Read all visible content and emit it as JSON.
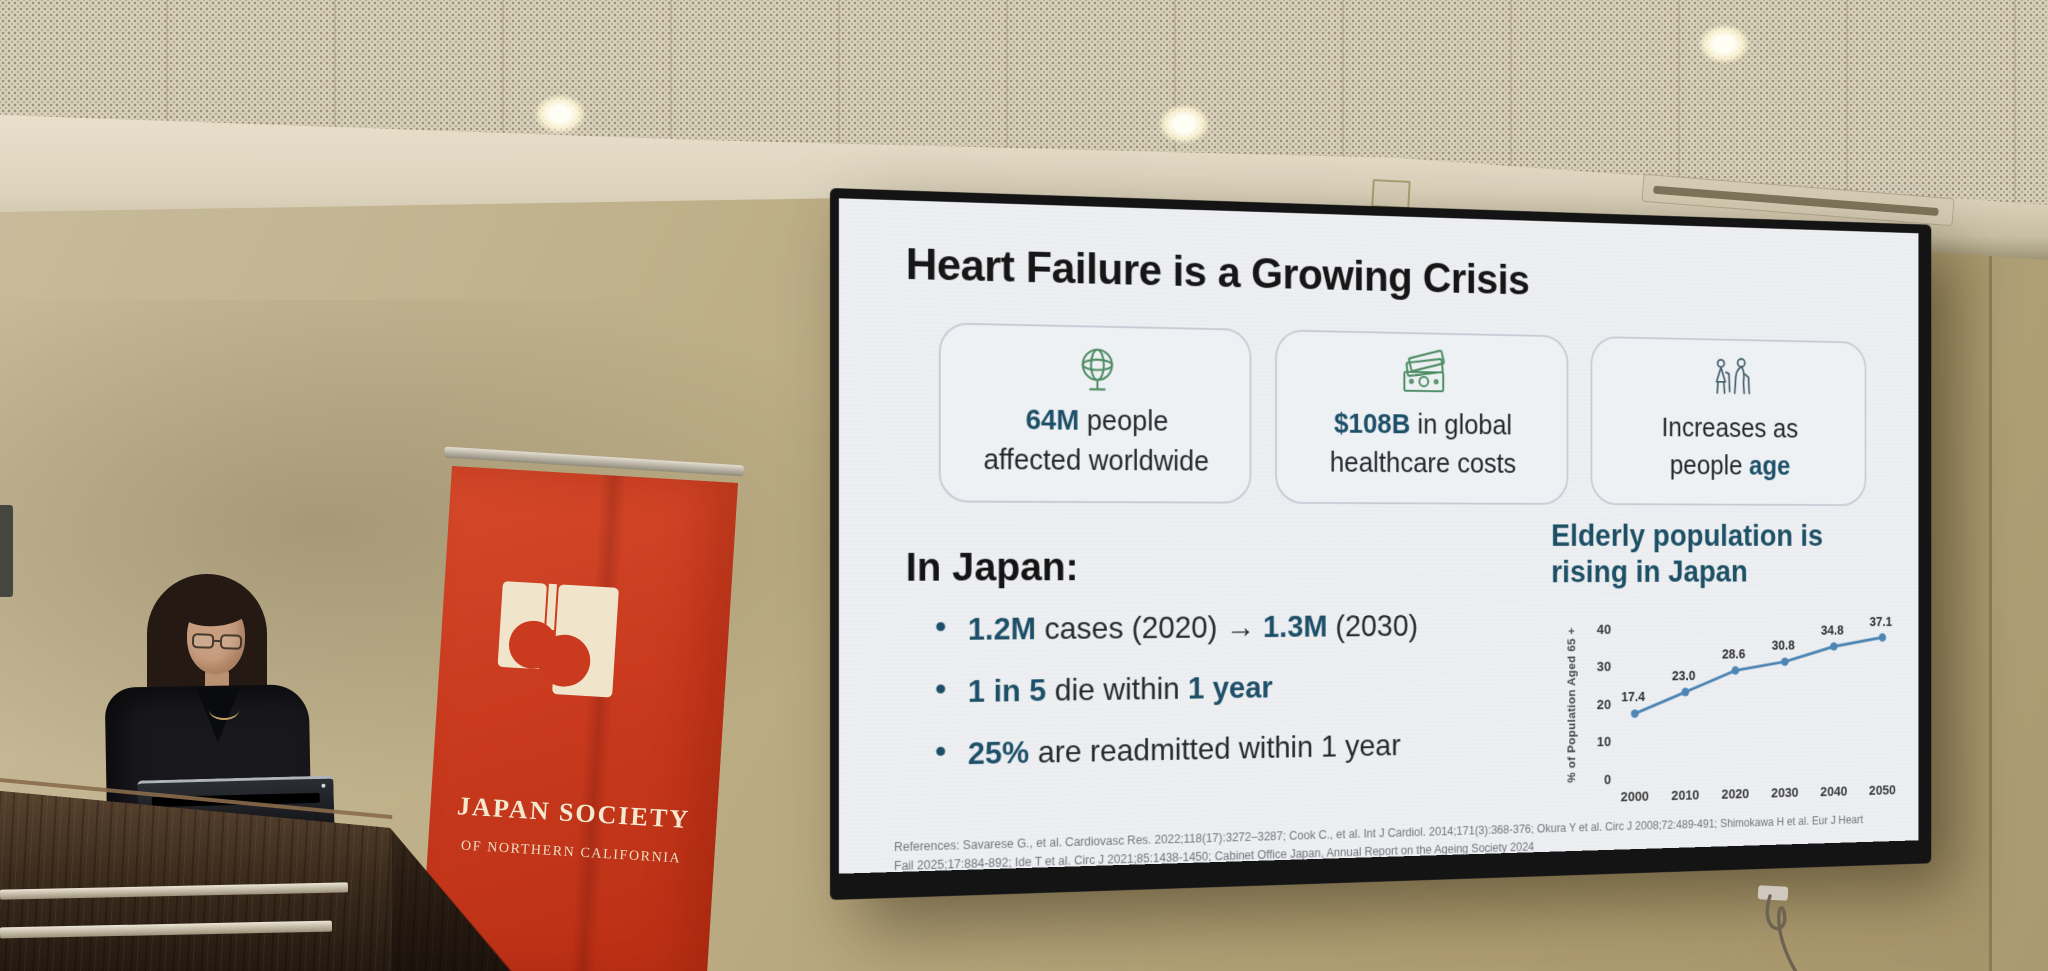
{
  "banner": {
    "org_name": "JAPAN SOCIETY",
    "org_subtitle": "OF NORTHERN CALIFORNIA",
    "logo_icon": "jsnc-circles-logo",
    "color_red": "#c93a1e",
    "color_cream": "#f0e5cb"
  },
  "slide": {
    "title": "Heart Failure is a Growing Crisis",
    "accent_navy": "#1d5068",
    "icon_green": "#4d8c63",
    "cards": [
      {
        "icon": "globe-icon",
        "line1": [
          {
            "t": "64M",
            "b": true
          },
          {
            "t": " people",
            "b": false
          }
        ],
        "line2": [
          {
            "t": "affected worldwide",
            "b": false
          }
        ]
      },
      {
        "icon": "banknotes-icon",
        "line1": [
          {
            "t": "$108B",
            "b": true
          },
          {
            "t": " in global",
            "b": false
          }
        ],
        "line2": [
          {
            "t": "healthcare costs",
            "b": false
          }
        ]
      },
      {
        "icon": "elderly-couple-icon",
        "line1": [
          {
            "t": "Increases as",
            "b": false
          }
        ],
        "line2": [
          {
            "t": "people ",
            "b": false
          },
          {
            "t": "age",
            "b": true
          }
        ]
      }
    ],
    "japan_section": {
      "heading": "In Japan:",
      "bullets": [
        [
          {
            "t": "1.2M",
            "b": true
          },
          {
            "t": " cases (2020) → ",
            "b": false
          },
          {
            "t": "1.3M",
            "b": true
          },
          {
            "t": " (2030)",
            "b": false
          }
        ],
        [
          {
            "t": "1 in 5",
            "b": true
          },
          {
            "t": " die within ",
            "b": false
          },
          {
            "t": "1 year",
            "b": true
          }
        ],
        [
          {
            "t": "25%",
            "b": true
          },
          {
            "t": " are readmitted within 1 year",
            "b": false
          }
        ]
      ]
    },
    "references": "References: Savarese G., et al. Cardiovasc Res. 2022;118(17):3272–3287; Cook C., et al. Int J Cardiol. 2014;171(3):368-376; Okura Y et al. Circ J 2008;72:489-491; Shimokawa H et al. Eur J Heart Fail 2025;17:884-892; Ide T et al. Circ J 2021;85:1438-1450; Cabinet Office Japan, Annual Report on the Ageing Society 2024"
  },
  "chart_data": {
    "type": "line",
    "title": "Elderly population is rising in Japan",
    "x": [
      2000,
      2010,
      2020,
      2030,
      2040,
      2050
    ],
    "values": [
      17.4,
      23.0,
      28.6,
      30.8,
      34.8,
      37.1
    ],
    "ylabel": "% of Population Aged 65 +",
    "xlabel": "",
    "yticks": [
      0,
      10,
      20,
      30,
      40
    ],
    "ylim": [
      0,
      40
    ],
    "grid": false,
    "legend": null,
    "line_color": "#4d86b5",
    "marker": "circle"
  }
}
